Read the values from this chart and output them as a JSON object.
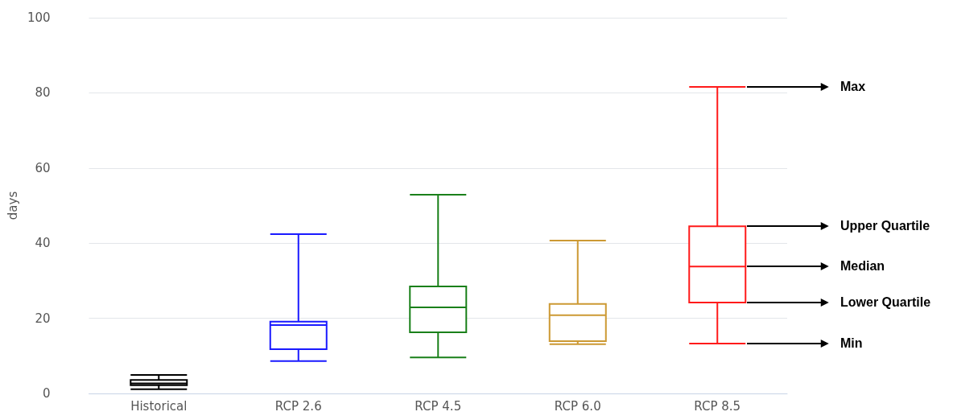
{
  "chart_data": {
    "type": "box",
    "ylabel": "days",
    "categories": [
      "Historical",
      "RCP 2.6",
      "RCP 4.5",
      "RCP 6.0",
      "RCP 8.5"
    ],
    "boxes": [
      {
        "low": 1.1,
        "q1": 2.2,
        "median": 2.7,
        "q3": 3.6,
        "high": 4.9
      },
      {
        "low": 8.6,
        "q1": 11.8,
        "median": 18.2,
        "q3": 19.1,
        "high": 42.4
      },
      {
        "low": 9.6,
        "q1": 16.3,
        "median": 22.9,
        "q3": 28.5,
        "high": 52.9
      },
      {
        "low": 13.1,
        "q1": 13.9,
        "median": 20.8,
        "q3": 23.8,
        "high": 40.7
      },
      {
        "low": 13.3,
        "q1": 24.2,
        "median": 33.8,
        "q3": 44.5,
        "high": 81.6
      }
    ],
    "colors": [
      "#000000",
      "#1a1aff",
      "#1a801a",
      "#cc9933",
      "#ff1a1a"
    ],
    "ylim": [
      0,
      100
    ],
    "yticks": [
      0,
      20,
      40,
      60,
      80,
      100
    ],
    "grid": "y",
    "annotations": [
      "Max",
      "Upper Quartile",
      "Median",
      "Lower Quartile",
      "Min"
    ]
  }
}
